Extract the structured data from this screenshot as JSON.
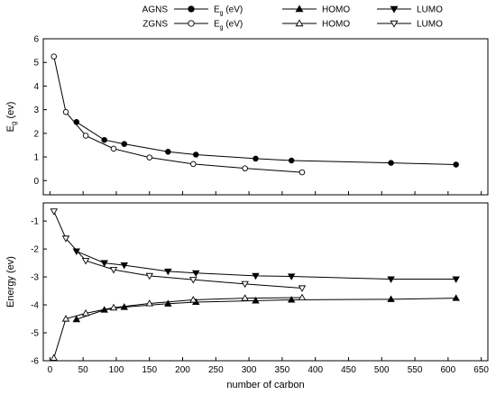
{
  "legend": {
    "rows": [
      {
        "label": "AGNS",
        "items": [
          {
            "kind": "Eg",
            "text": "E",
            "sub": "g",
            "suffix": " (eV)",
            "marker": "circle",
            "filled": true
          },
          {
            "kind": "plain",
            "text": "HOMO",
            "marker": "triangle-up",
            "filled": true
          },
          {
            "kind": "plain",
            "text": "LUMO",
            "marker": "triangle-down",
            "filled": true
          }
        ]
      },
      {
        "label": "ZGNS",
        "items": [
          {
            "kind": "Eg",
            "text": "E",
            "sub": "g",
            "suffix": " (eV)",
            "marker": "circle",
            "filled": false
          },
          {
            "kind": "plain",
            "text": "HOMO",
            "marker": "triangle-up",
            "filled": false
          },
          {
            "kind": "plain",
            "text": "LUMO",
            "marker": "triangle-down",
            "filled": false
          }
        ]
      }
    ]
  },
  "chart_data": [
    {
      "type": "line",
      "panel": "top",
      "title": "",
      "xlabel": "",
      "ylabel": "E_g (ev)",
      "ylabel_main": "E",
      "ylabel_sub": "g",
      "ylabel_rest": " (ev)",
      "xlim": [
        -10,
        660
      ],
      "ylim": [
        -0.6,
        6
      ],
      "yticks": [
        0,
        1,
        2,
        3,
        4,
        5,
        6
      ],
      "grid": false,
      "series": [
        {
          "marker": "circle",
          "filled": true,
          "x": [
            40,
            82,
            112,
            178,
            220,
            310,
            364,
            514,
            612
          ],
          "y": [
            2.48,
            1.72,
            1.55,
            1.22,
            1.1,
            0.93,
            0.85,
            0.75,
            0.68
          ]
        },
        {
          "marker": "circle",
          "filled": false,
          "x": [
            6,
            24,
            54,
            96,
            150,
            216,
            294,
            380
          ],
          "y": [
            5.25,
            2.9,
            1.9,
            1.35,
            0.98,
            0.7,
            0.52,
            0.35
          ]
        }
      ]
    },
    {
      "type": "line",
      "panel": "bottom",
      "title": "",
      "xlabel": "number of carbon",
      "ylabel": "Energy (ev)",
      "xlim": [
        -10,
        660
      ],
      "ylim": [
        -6,
        -0.35
      ],
      "yticks": [
        -6,
        -5,
        -4,
        -3,
        -2,
        -1
      ],
      "xticks": [
        0,
        50,
        100,
        150,
        200,
        250,
        300,
        350,
        400,
        450,
        500,
        550,
        600,
        650
      ],
      "grid": false,
      "series": [
        {
          "marker": "triangle-up",
          "filled": true,
          "x": [
            40,
            82,
            112,
            178,
            220,
            310,
            364,
            514,
            612
          ],
          "y": [
            -4.52,
            -4.18,
            -4.08,
            -3.96,
            -3.9,
            -3.85,
            -3.82,
            -3.8,
            -3.76
          ]
        },
        {
          "marker": "triangle-down",
          "filled": true,
          "x": [
            40,
            82,
            112,
            178,
            220,
            310,
            364,
            514,
            612
          ],
          "y": [
            -2.08,
            -2.5,
            -2.58,
            -2.8,
            -2.86,
            -2.96,
            -2.98,
            -3.08,
            -3.08
          ]
        },
        {
          "marker": "triangle-up",
          "filled": false,
          "x": [
            6,
            24,
            54,
            96,
            150,
            216,
            294,
            380
          ],
          "y": [
            -5.9,
            -4.5,
            -4.3,
            -4.1,
            -3.95,
            -3.82,
            -3.76,
            -3.74
          ]
        },
        {
          "marker": "triangle-down",
          "filled": false,
          "x": [
            6,
            24,
            54,
            96,
            150,
            216,
            294,
            380
          ],
          "y": [
            -0.65,
            -1.62,
            -2.42,
            -2.74,
            -2.96,
            -3.1,
            -3.25,
            -3.4
          ]
        }
      ]
    }
  ]
}
